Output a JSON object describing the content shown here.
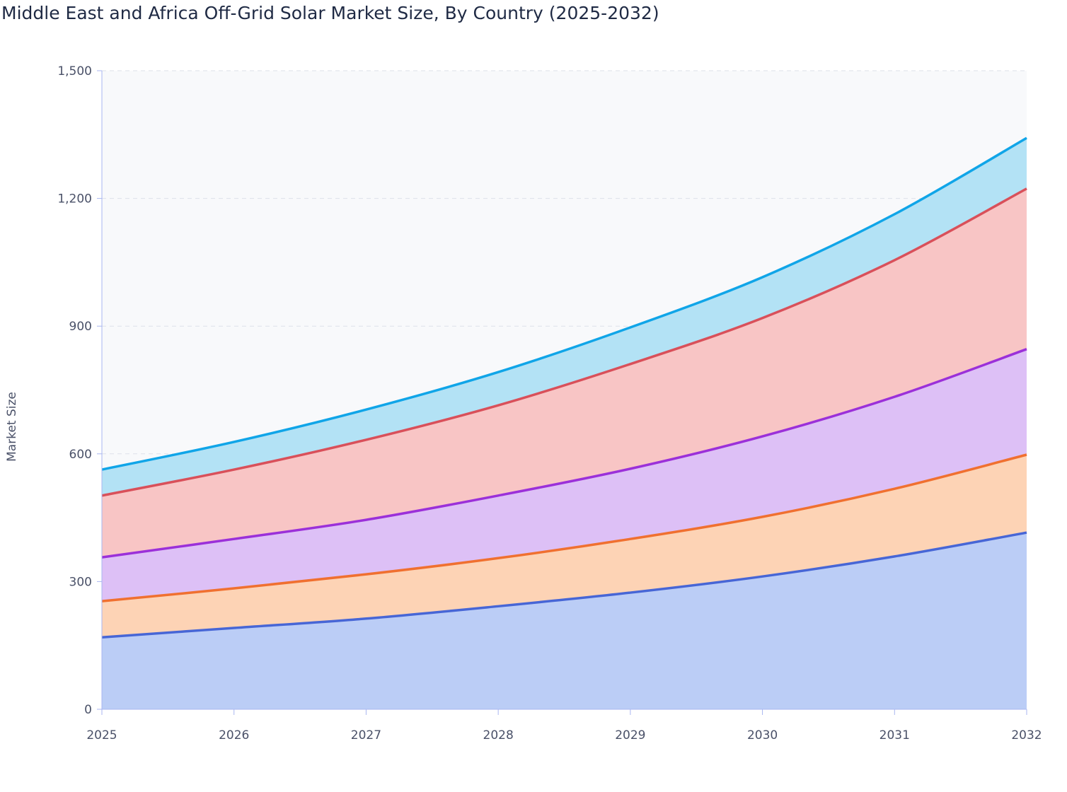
{
  "chart_data": {
    "type": "area",
    "stacked": true,
    "title": "Middle East and Africa Off-Grid Solar Market Size, By Country (2025-2032)",
    "xlabel": "",
    "ylabel": "Market Size",
    "x": [
      "2025",
      "2026",
      "2027",
      "2028",
      "2029",
      "2030",
      "2031",
      "2032"
    ],
    "ylim": [
      0,
      1500
    ],
    "yticks": [
      0,
      300,
      600,
      900,
      1200,
      1500
    ],
    "ytick_labels": [
      "0",
      "300",
      "600",
      "900",
      "1,200",
      "1,500"
    ],
    "grid": true,
    "series": [
      {
        "values": [
          169,
          191,
          213,
          242,
          274,
          312,
          359,
          415
        ],
        "line_color": "#4766d6",
        "fill_color": "#bbcdf6"
      },
      {
        "values": [
          85,
          93,
          104,
          113,
          126,
          140,
          159,
          183
        ],
        "line_color": "#f07030",
        "fill_color": "#fdd3b5"
      },
      {
        "values": [
          103,
          116,
          128,
          147,
          165,
          189,
          216,
          248
        ],
        "line_color": "#9b30d9",
        "fill_color": "#ddc0f6"
      },
      {
        "values": [
          145,
          163,
          188,
          212,
          246,
          278,
          321,
          377
        ],
        "line_color": "#d9505a",
        "fill_color": "#f8c5c5"
      },
      {
        "values": [
          61,
          65,
          71,
          78,
          86,
          96,
          108,
          119
        ],
        "line_color": "#10a5e8",
        "fill_color": "#b3e2f5"
      }
    ]
  }
}
